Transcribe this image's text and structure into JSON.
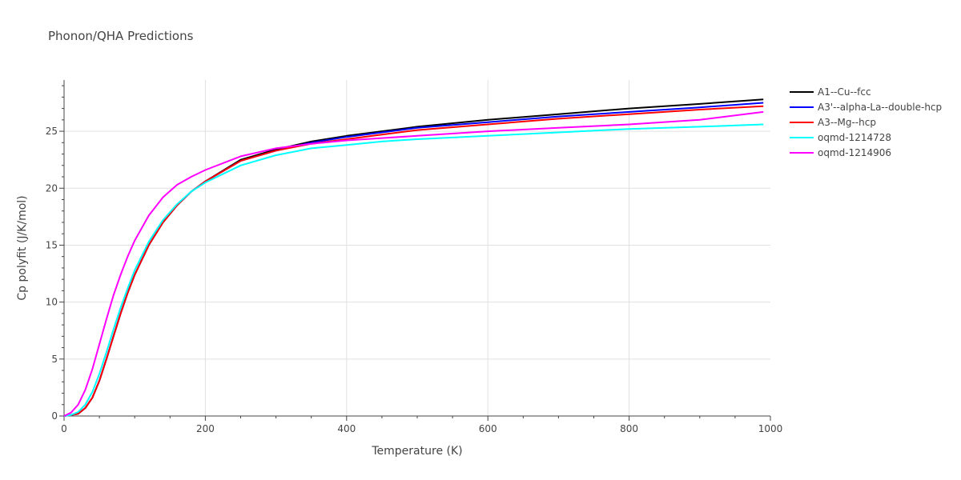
{
  "chart_data": {
    "type": "line",
    "title": "Phonon/QHA Predictions",
    "xlabel": "Temperature (K)",
    "ylabel": "Cp polyfit (J/K/mol)",
    "xlim": [
      0,
      1000
    ],
    "ylim": [
      0,
      29.5
    ],
    "xticks": [
      0,
      200,
      400,
      600,
      800,
      1000
    ],
    "yticks": [
      0,
      5,
      10,
      15,
      20,
      25
    ],
    "grid": true,
    "legend_position": "top-right",
    "series": [
      {
        "name": "A1--Cu--fcc",
        "color": "#000000",
        "x": [
          0,
          10,
          20,
          30,
          40,
          50,
          60,
          70,
          80,
          90,
          100,
          120,
          140,
          160,
          180,
          200,
          250,
          300,
          350,
          400,
          450,
          500,
          600,
          700,
          800,
          900,
          990
        ],
        "y": [
          0,
          0.1,
          0.2,
          0.7,
          1.6,
          3.1,
          5.0,
          7.0,
          9.0,
          10.8,
          12.4,
          15.0,
          17.0,
          18.5,
          19.7,
          20.6,
          22.5,
          23.4,
          24.1,
          24.6,
          25.0,
          25.4,
          26.0,
          26.5,
          27.0,
          27.4,
          27.8
        ]
      },
      {
        "name": "A3'--alpha-La--double-hcp",
        "color": "#0000ff",
        "x": [
          0,
          10,
          20,
          30,
          40,
          50,
          60,
          70,
          80,
          90,
          100,
          120,
          140,
          160,
          180,
          200,
          250,
          300,
          350,
          400,
          450,
          500,
          600,
          700,
          800,
          900,
          990
        ],
        "y": [
          0,
          0.1,
          0.2,
          0.7,
          1.6,
          3.1,
          5.0,
          7.0,
          9.0,
          10.8,
          12.4,
          15.0,
          17.0,
          18.5,
          19.7,
          20.6,
          22.4,
          23.3,
          24.0,
          24.5,
          24.9,
          25.3,
          25.8,
          26.3,
          26.7,
          27.1,
          27.5
        ]
      },
      {
        "name": "A3--Mg--hcp",
        "color": "#ff0000",
        "x": [
          0,
          10,
          20,
          30,
          40,
          50,
          60,
          70,
          80,
          90,
          100,
          120,
          140,
          160,
          180,
          200,
          250,
          300,
          350,
          400,
          450,
          500,
          600,
          700,
          800,
          900,
          990
        ],
        "y": [
          0,
          0.1,
          0.2,
          0.7,
          1.6,
          3.1,
          5.0,
          7.0,
          9.0,
          10.8,
          12.4,
          15.0,
          17.0,
          18.5,
          19.7,
          20.6,
          22.4,
          23.3,
          23.9,
          24.3,
          24.7,
          25.1,
          25.6,
          26.1,
          26.5,
          26.9,
          27.2
        ]
      },
      {
        "name": "oqmd-1214728",
        "color": "#00ffff",
        "x": [
          0,
          10,
          20,
          30,
          40,
          50,
          60,
          70,
          80,
          90,
          100,
          120,
          140,
          160,
          180,
          200,
          250,
          300,
          350,
          400,
          450,
          500,
          600,
          700,
          800,
          900,
          990
        ],
        "y": [
          0,
          0.1,
          0.35,
          1.0,
          2.1,
          3.7,
          5.6,
          7.6,
          9.5,
          11.2,
          12.8,
          15.3,
          17.2,
          18.6,
          19.7,
          20.5,
          22.0,
          22.9,
          23.5,
          23.8,
          24.1,
          24.3,
          24.6,
          24.9,
          25.2,
          25.4,
          25.6
        ]
      },
      {
        "name": "oqmd-1214906",
        "color": "#ff00ff",
        "x": [
          0,
          10,
          20,
          30,
          40,
          50,
          60,
          70,
          80,
          90,
          100,
          120,
          140,
          160,
          180,
          200,
          250,
          300,
          350,
          400,
          450,
          500,
          600,
          700,
          800,
          900,
          990
        ],
        "y": [
          0,
          0.3,
          1.0,
          2.3,
          4.1,
          6.3,
          8.5,
          10.6,
          12.4,
          14.0,
          15.4,
          17.6,
          19.2,
          20.3,
          21.0,
          21.6,
          22.8,
          23.5,
          23.9,
          24.2,
          24.4,
          24.6,
          25.0,
          25.3,
          25.6,
          26.0,
          26.7
        ]
      }
    ]
  }
}
